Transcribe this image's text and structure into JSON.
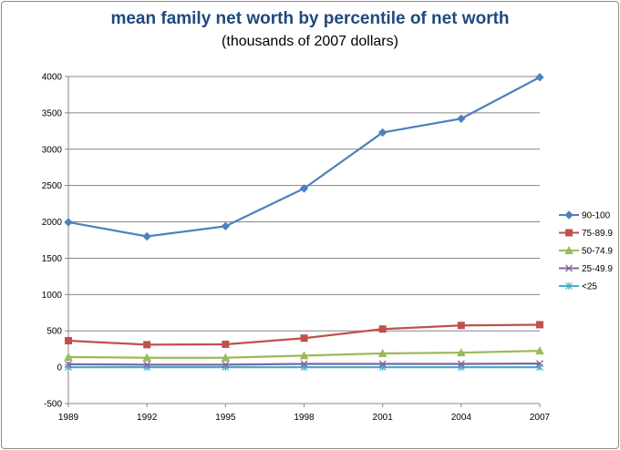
{
  "chart_data": {
    "type": "line",
    "title": "mean family net worth by percentile of net worth",
    "subtitle": "(thousands of 2007 dollars)",
    "xlabel": "",
    "ylabel": "",
    "x": [
      1989,
      1992,
      1995,
      1998,
      2001,
      2004,
      2007
    ],
    "x_tick_labels": [
      "1989",
      "1992",
      "1995",
      "1998",
      "2001",
      "2004",
      "2007"
    ],
    "ylim": [
      -500,
      4000
    ],
    "y_ticks": [
      -500,
      0,
      500,
      1000,
      1500,
      2000,
      2500,
      3000,
      3500,
      4000
    ],
    "y_tick_labels": [
      "-500",
      "0",
      "500",
      "1000",
      "1500",
      "2000",
      "2500",
      "3000",
      "3500",
      "4000"
    ],
    "grid": true,
    "legend_position": "right",
    "series": [
      {
        "name": "90-100",
        "color": "#4f81bd",
        "marker": "diamond",
        "values": [
          1995,
          1800,
          1940,
          2460,
          3230,
          3420,
          3990
        ]
      },
      {
        "name": "75-89.9",
        "color": "#c0504d",
        "marker": "square",
        "values": [
          365,
          310,
          315,
          400,
          525,
          575,
          585
        ]
      },
      {
        "name": "50-74.9",
        "color": "#9bbb59",
        "marker": "triangle",
        "values": [
          140,
          130,
          130,
          160,
          190,
          200,
          225
        ]
      },
      {
        "name": "25-49.9",
        "color": "#8064a2",
        "marker": "x",
        "values": [
          40,
          35,
          35,
          45,
          45,
          45,
          50
        ]
      },
      {
        "name": "<25",
        "color": "#4bacc6",
        "marker": "star",
        "values": [
          0,
          0,
          0,
          0,
          0,
          0,
          0
        ]
      }
    ]
  }
}
